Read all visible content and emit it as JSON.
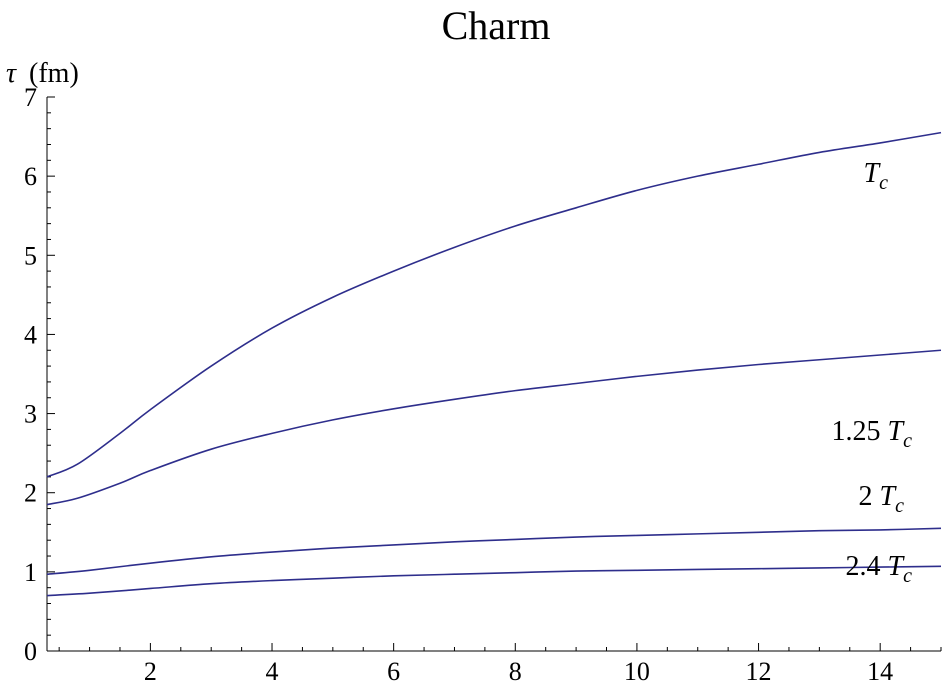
{
  "chart_data": {
    "type": "line",
    "title": "Charm",
    "ylabel_symbol": "τ",
    "ylabel_unit": "(fm)",
    "xlabel": "",
    "xlim": [
      0.3,
      15
    ],
    "ylim": [
      0,
      7
    ],
    "x_ticks": [
      2,
      4,
      6,
      8,
      10,
      12,
      14
    ],
    "y_ticks": [
      0,
      1,
      2,
      3,
      4,
      5,
      6,
      7
    ],
    "color": "#2e2e8c",
    "series": [
      {
        "prefix": "",
        "symbol": "T",
        "subscript": "c",
        "x": [
          0.3,
          0.8,
          1.5,
          2,
          3,
          4,
          5,
          6,
          7,
          8,
          9,
          10,
          11,
          12,
          13,
          14,
          15
        ],
        "y": [
          2.2,
          2.36,
          2.75,
          3.05,
          3.6,
          4.08,
          4.47,
          4.8,
          5.1,
          5.37,
          5.6,
          5.82,
          6.0,
          6.15,
          6.3,
          6.42,
          6.55
        ]
      },
      {
        "prefix": "1.25 ",
        "symbol": "T",
        "subscript": "c",
        "x": [
          0.3,
          0.8,
          1.5,
          2,
          3,
          4,
          5,
          6,
          7,
          8,
          9,
          10,
          11,
          12,
          13,
          14,
          15
        ],
        "y": [
          1.85,
          1.93,
          2.12,
          2.28,
          2.55,
          2.75,
          2.92,
          3.06,
          3.18,
          3.29,
          3.38,
          3.47,
          3.55,
          3.62,
          3.68,
          3.74,
          3.8
        ]
      },
      {
        "prefix": "2 ",
        "symbol": "T",
        "subscript": "c",
        "x": [
          0.3,
          1,
          2,
          3,
          4,
          5,
          6,
          7,
          8,
          9,
          10,
          11,
          12,
          13,
          14,
          15
        ],
        "y": [
          0.97,
          1.02,
          1.11,
          1.19,
          1.25,
          1.3,
          1.34,
          1.38,
          1.41,
          1.44,
          1.46,
          1.48,
          1.5,
          1.52,
          1.53,
          1.55
        ]
      },
      {
        "prefix": "2.4 ",
        "symbol": "T",
        "subscript": "c",
        "x": [
          0.3,
          1,
          2,
          3,
          4,
          5,
          6,
          7,
          8,
          9,
          10,
          11,
          12,
          13,
          14,
          15
        ],
        "y": [
          0.7,
          0.73,
          0.79,
          0.85,
          0.89,
          0.92,
          0.95,
          0.97,
          0.99,
          1.01,
          1.02,
          1.03,
          1.04,
          1.05,
          1.06,
          1.07
        ]
      }
    ]
  }
}
